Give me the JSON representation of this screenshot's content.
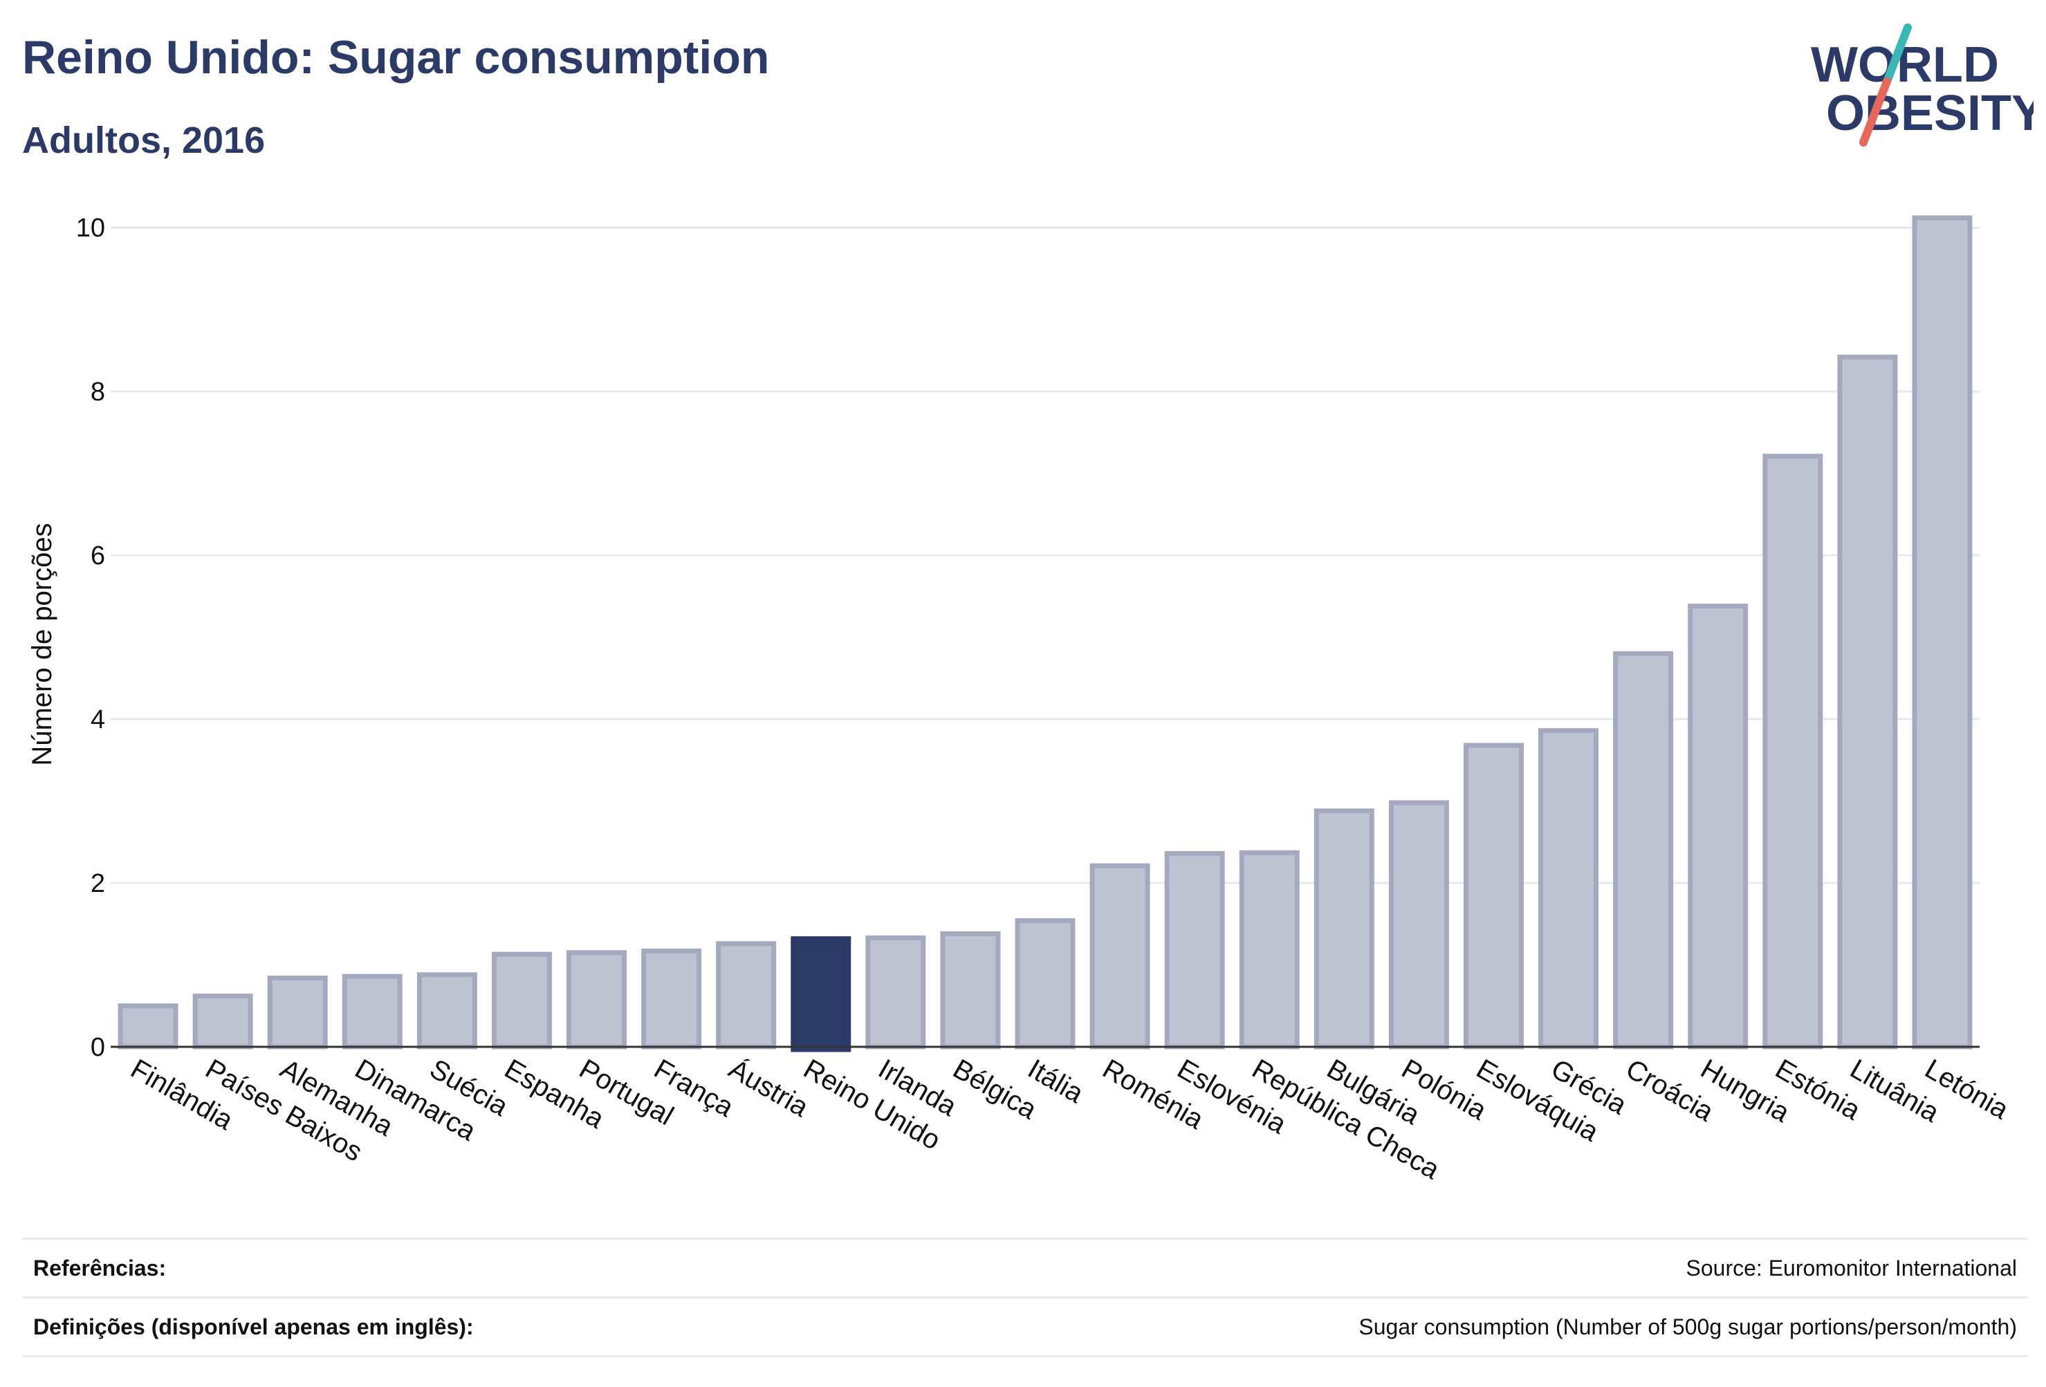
{
  "header": {
    "title": "Reino Unido: Sugar consumption",
    "subtitle": "Adultos, 2016"
  },
  "logo": {
    "line1": "WORLD",
    "line2": "OBESITY",
    "colors": {
      "text": "#2b3a67",
      "slash_top": "#3ab7b5",
      "slash_bottom": "#e8675a"
    }
  },
  "chart_data": {
    "type": "bar",
    "ylabel": "Número de porções",
    "xlabel": "",
    "ylim": [
      0,
      10.5
    ],
    "yticks": [
      0,
      2,
      4,
      6,
      8,
      10
    ],
    "grid": true,
    "highlight": "Reino Unido",
    "colors": {
      "bar": "#bfc2d1",
      "bar_border": "#a4a9bf",
      "highlight": "#2b3a67",
      "grid": "#e6e8ef"
    },
    "categories": [
      "Finlândia",
      "Países Baixos",
      "Alemanha",
      "Dinamarca",
      "Suécia",
      "Espanha",
      "Portugal",
      "França",
      "Áustria",
      "Reino Unido",
      "Irlanda",
      "Bélgica",
      "Itália",
      "Roménia",
      "Eslovénia",
      "República Checa",
      "Bulgária",
      "Polónia",
      "Eslováquia",
      "Grécia",
      "Croácia",
      "Hungria",
      "Estónia",
      "Lituânia",
      "Letónia"
    ],
    "values": [
      0.5,
      0.62,
      0.84,
      0.86,
      0.88,
      1.13,
      1.15,
      1.17,
      1.26,
      1.32,
      1.33,
      1.38,
      1.54,
      2.21,
      2.36,
      2.37,
      2.88,
      2.98,
      3.68,
      3.86,
      4.8,
      5.38,
      7.21,
      8.42,
      10.12
    ]
  },
  "references": {
    "label": "Referências:",
    "value": "Source: Euromonitor International"
  },
  "definitions": {
    "label": "Definições (disponível apenas em inglês):",
    "value": "Sugar consumption (Number of 500g sugar portions/person/month)"
  }
}
